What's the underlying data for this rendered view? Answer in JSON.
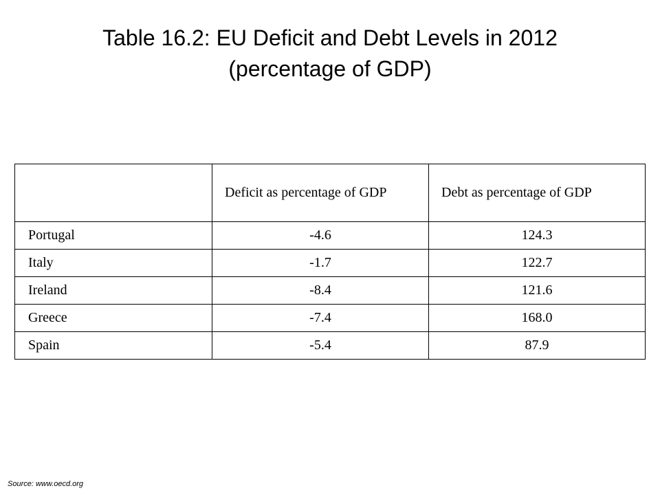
{
  "title": {
    "line1": "Table 16.2: EU Deficit and Debt Levels in 2012",
    "line2": "(percentage of GDP)"
  },
  "table": {
    "headers": [
      "",
      "Deficit as percentage of GDP",
      "Debt as percentage of GDP"
    ],
    "rows": [
      {
        "country": "Portugal",
        "deficit": "-4.6",
        "debt": "124.3"
      },
      {
        "country": "Italy",
        "deficit": "-1.7",
        "debt": "122.7"
      },
      {
        "country": "Ireland",
        "deficit": "-8.4",
        "debt": "121.6"
      },
      {
        "country": "Greece",
        "deficit": "-7.4",
        "debt": "168.0"
      },
      {
        "country": "Spain",
        "deficit": "-5.4",
        "debt": "87.9"
      }
    ]
  },
  "chart_data": {
    "type": "table",
    "title": "Table 16.2: EU Deficit and Debt Levels in 2012 (percentage of GDP)",
    "columns": [
      "",
      "Deficit as percentage of GDP",
      "Debt as percentage of GDP"
    ],
    "rows": [
      [
        "Portugal",
        -4.6,
        124.3
      ],
      [
        "Italy",
        -1.7,
        122.7
      ],
      [
        "Ireland",
        -8.4,
        121.6
      ],
      [
        "Greece",
        -7.4,
        168.0
      ],
      [
        "Spain",
        -5.4,
        87.9
      ]
    ]
  },
  "source": "Source: www.oecd.org"
}
